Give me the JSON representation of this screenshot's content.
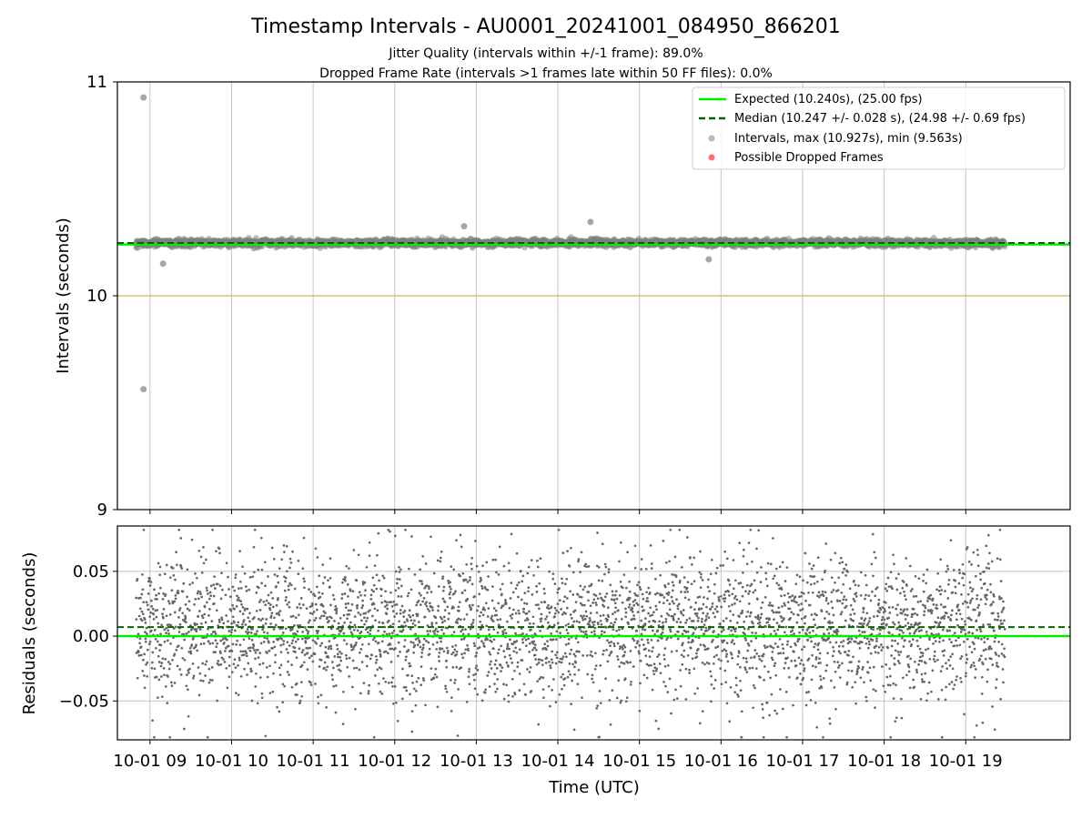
{
  "chart_data": {
    "type": "scatter",
    "title": "Timestamp Intervals - AU0001_20241001_084950_866201",
    "subtitles": [
      "Jitter Quality (intervals within +/-1 frame): 89.0%",
      "Dropped Frame Rate (intervals >1 frames late within 50 FF files): 0.0%"
    ],
    "xlabel": "Time (UTC)",
    "xlim": [
      8.6,
      20.28
    ],
    "x_ticks": [
      {
        "value": 9,
        "label": "10-01 09"
      },
      {
        "value": 10,
        "label": "10-01 10"
      },
      {
        "value": 11,
        "label": "10-01 11"
      },
      {
        "value": 12,
        "label": "10-01 12"
      },
      {
        "value": 13,
        "label": "10-01 13"
      },
      {
        "value": 14,
        "label": "10-01 14"
      },
      {
        "value": 15,
        "label": "10-01 15"
      },
      {
        "value": 16,
        "label": "10-01 16"
      },
      {
        "value": 17,
        "label": "10-01 17"
      },
      {
        "value": 18,
        "label": "10-01 18"
      },
      {
        "value": 19,
        "label": "10-01 19"
      }
    ],
    "data_time_range": [
      8.83,
      19.48
    ],
    "colors": {
      "expected": "#00ee00",
      "median": "#006400",
      "intervals": "#808080",
      "dropped": "#ff3b3b",
      "reference": "#d8c078"
    },
    "top_panel": {
      "ylabel": "Intervals (seconds)",
      "ylim": [
        9,
        11
      ],
      "y_ticks": [
        "9",
        "10",
        "11"
      ],
      "grid": "vertical",
      "expected": 10.24,
      "median": 10.247,
      "reference_line": 10.0,
      "scatter_center": 10.247,
      "scatter_spread": 0.028,
      "count": 3700,
      "outliers": [
        {
          "x": 8.92,
          "y": 10.927
        },
        {
          "x": 8.92,
          "y": 9.563
        },
        {
          "x": 9.16,
          "y": 10.15
        },
        {
          "x": 14.4,
          "y": 10.345
        },
        {
          "x": 12.85,
          "y": 10.325
        },
        {
          "x": 15.85,
          "y": 10.17
        }
      ],
      "legend": {
        "position": "upper right",
        "entries": [
          {
            "label": "Expected (10.240s), (25.00 fps)",
            "marker": "line"
          },
          {
            "label": "Median (10.247 +/- 0.028 s), (24.98 +/- 0.69 fps)",
            "marker": "dashed"
          },
          {
            "label": "Intervals, max (10.927s), min (9.563s)",
            "marker": "dot-gray"
          },
          {
            "label": "Possible Dropped Frames",
            "marker": "dot-red"
          }
        ]
      }
    },
    "bottom_panel": {
      "ylabel": "Residuals (seconds)",
      "ylim": [
        -0.08,
        0.085
      ],
      "y_ticks": [
        {
          "value": 0.05,
          "label": "0.05"
        },
        {
          "value": 0.0,
          "label": "0.00"
        },
        {
          "value": -0.05,
          "label": "−0.05"
        }
      ],
      "grid": "both",
      "expected": 0.0,
      "median": 0.007,
      "scatter_center": 0.007,
      "scatter_spread": 0.028,
      "count": 3700
    }
  }
}
